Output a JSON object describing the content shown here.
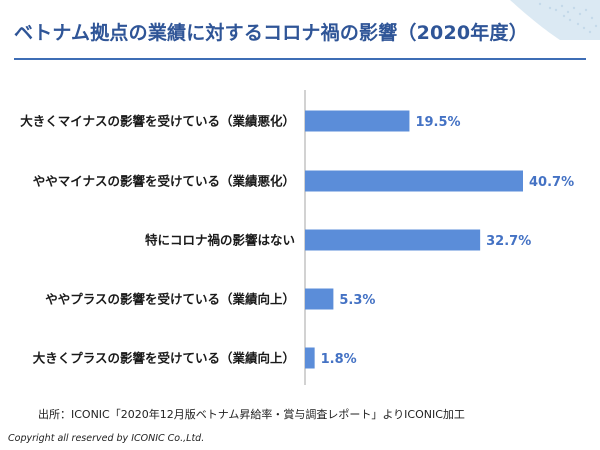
{
  "colors": {
    "title": "#2f5597",
    "bar": "#5b8dd9",
    "value_text": "#4472c4",
    "axis": "#a6a6a6",
    "rule": "#3e6db5"
  },
  "header": {
    "title": "ベトナム拠点の業績に対するコロナ禍の影響（2020年度）"
  },
  "chart_data": {
    "type": "bar",
    "orientation": "horizontal",
    "title": "ベトナム拠点の業績に対するコロナ禍の影響（2020年度）",
    "categories": [
      "大きくマイナスの影響を受けている（業績悪化）",
      "ややマイナスの影響を受けている（業績悪化）",
      "特にコロナ禍の影響はない",
      "ややプラスの影響を受けている（業績向上）",
      "大きくプラスの影響を受けている（業績向上）"
    ],
    "values": [
      19.5,
      40.7,
      32.7,
      5.3,
      1.8
    ],
    "value_labels": [
      "19.5%",
      "40.7%",
      "32.7%",
      "5.3%",
      "1.8%"
    ],
    "unit": "%",
    "xlim": [
      0,
      40.7
    ],
    "grid": false,
    "legend": "none"
  },
  "footer": {
    "source": "出所：ICONIC「2020年12月版ベトナム昇給率・賞与調査レポート」よりICONIC加工",
    "copyright": "Copyright all reserved by ICONIC Co.,Ltd."
  }
}
